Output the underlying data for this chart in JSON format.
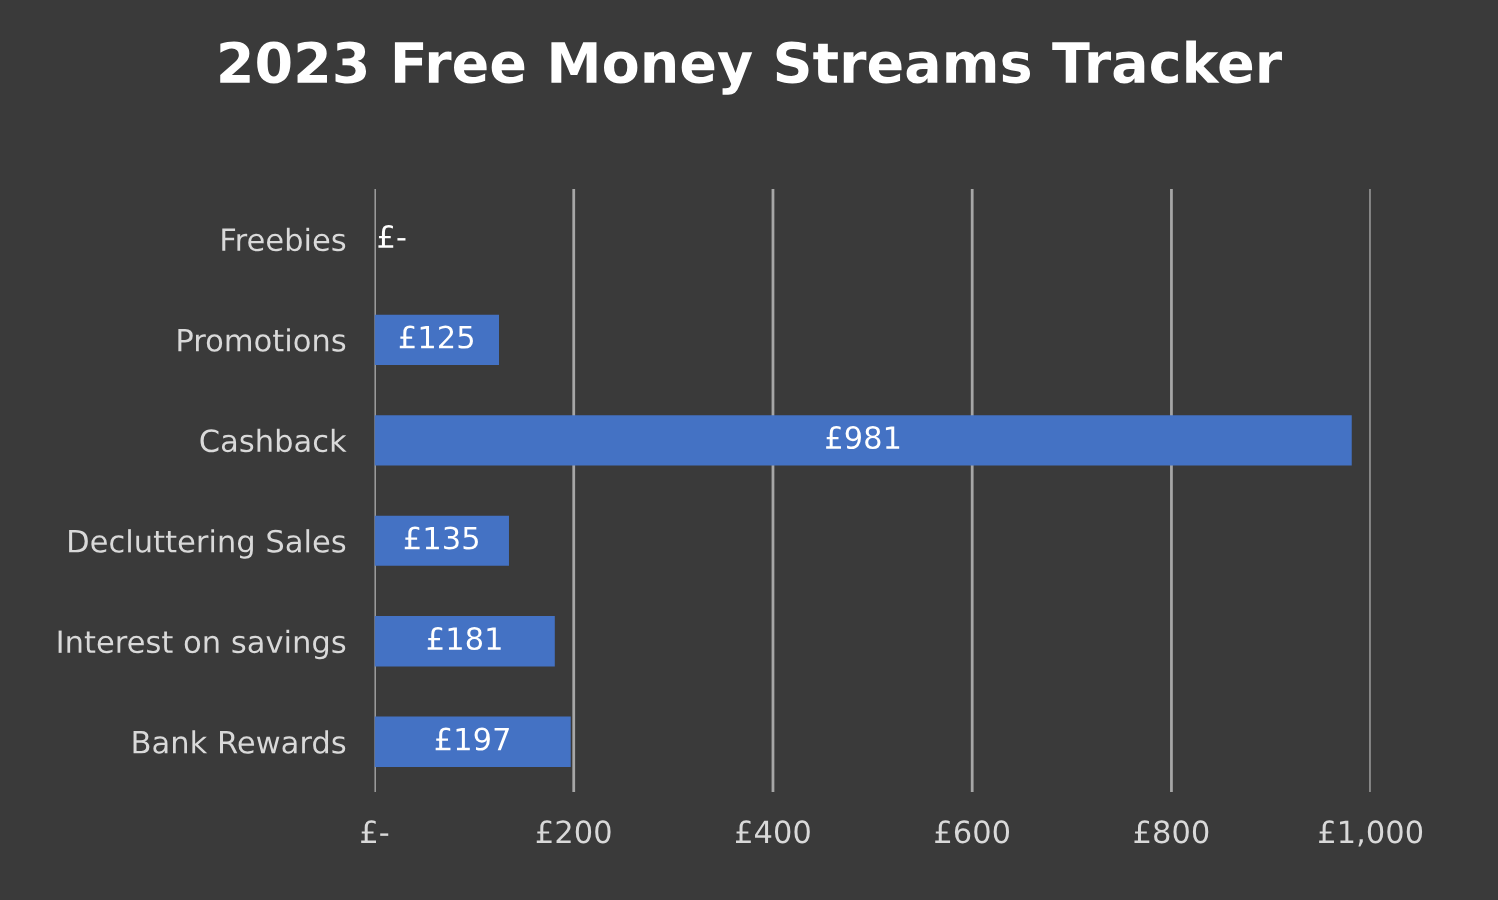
{
  "chart_data": {
    "type": "bar",
    "orientation": "horizontal",
    "title": "2023 Free Money Streams Tracker",
    "categories": [
      "Freebies",
      "Promotions",
      "Cashback",
      "Decluttering Sales",
      "Interest on savings",
      "Bank Rewards"
    ],
    "values": [
      0,
      125,
      981,
      135,
      181,
      197
    ],
    "value_labels": [
      "£-",
      "£125",
      "£981",
      "£135",
      "£181",
      "£197"
    ],
    "color": "#4472c4",
    "xlim": [
      0,
      1000
    ],
    "xticks": [
      {
        "value": 0,
        "label": "£-"
      },
      {
        "value": 200,
        "label": "£200"
      },
      {
        "value": 400,
        "label": "£400"
      },
      {
        "value": 600,
        "label": "£600"
      },
      {
        "value": 800,
        "label": "£800"
      },
      {
        "value": 1000,
        "label": "£1,000"
      }
    ],
    "grid": "x",
    "legend": false
  }
}
